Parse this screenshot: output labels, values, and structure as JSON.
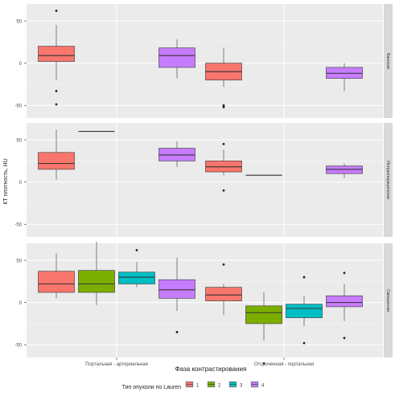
{
  "chart_data": {
    "type": "box",
    "xlabel": "Фаза контрастирования",
    "ylabel": "КТ плотность, HU",
    "categories": [
      "Портальная - артериальная",
      "Отсроченная - портальная"
    ],
    "facets": [
      "Биопсия",
      "Интраоперационная",
      "Смешанная"
    ],
    "ylim": [
      -65,
      70
    ],
    "yticks": [
      -50,
      0,
      50
    ],
    "grid": true,
    "legend": {
      "position": "bottom",
      "title": "Тип опухоли по Lauren",
      "entries": [
        {
          "label": "1",
          "color": "#F8766D"
        },
        {
          "label": "2",
          "color": "#7CAE00"
        },
        {
          "label": "3",
          "color": "#00BFC4"
        },
        {
          "label": "4",
          "color": "#C77CFF"
        }
      ]
    },
    "panels": [
      {
        "facet": "Биопсия",
        "boxes": [
          {
            "category": 0,
            "group": "1",
            "whisker_low": -20,
            "q1": 2,
            "median": 9,
            "q3": 20,
            "whisker_high": 45,
            "outliers": [
              62,
              -33
            ]
          },
          {
            "category": 0,
            "group": "4",
            "whisker_low": -18,
            "q1": -5,
            "median": 9,
            "q3": 18,
            "whisker_high": 28,
            "outliers": []
          },
          {
            "category": 1,
            "group": "1",
            "whisker_low": -28,
            "q1": -20,
            "median": -10,
            "q3": 0,
            "whisker_high": 18,
            "outliers": [
              -50,
              -52
            ]
          },
          {
            "category": 1,
            "group": "4",
            "whisker_low": -33,
            "q1": -18,
            "median": -12,
            "q3": -5,
            "whisker_high": 0,
            "outliers": []
          }
        ]
      },
      {
        "facet": "Интраоперационная",
        "boxes": [
          {
            "category": 0,
            "group": "1",
            "whisker_low": 3,
            "q1": 15,
            "median": 22,
            "q3": 35,
            "whisker_high": 62,
            "outliers": [
              92
            ]
          },
          {
            "category": 0,
            "group": "2",
            "whisker_low": 60,
            "q1": 60,
            "median": 60,
            "q3": 60,
            "whisker_high": 60,
            "outliers": []
          },
          {
            "category": 0,
            "group": "4",
            "whisker_low": 18,
            "q1": 25,
            "median": 32,
            "q3": 40,
            "whisker_high": 48,
            "outliers": []
          },
          {
            "category": 1,
            "group": "1",
            "whisker_low": 8,
            "q1": 12,
            "median": 18,
            "q3": 25,
            "whisker_high": 38,
            "outliers": [
              45,
              -10
            ]
          },
          {
            "category": 1,
            "group": "2",
            "whisker_low": 8,
            "q1": 8,
            "median": 8,
            "q3": 8,
            "whisker_high": 8,
            "outliers": []
          },
          {
            "category": 1,
            "group": "4",
            "whisker_low": 5,
            "q1": 10,
            "median": 15,
            "q3": 19,
            "whisker_high": 22,
            "outliers": []
          }
        ]
      },
      {
        "facet": "Смешанная",
        "boxes": [
          {
            "category": 0,
            "group": "1",
            "whisker_low": 5,
            "q1": 12,
            "median": 22,
            "q3": 37,
            "whisker_high": 58,
            "outliers": []
          },
          {
            "category": 0,
            "group": "2",
            "whisker_low": -3,
            "q1": 12,
            "median": 22,
            "q3": 38,
            "whisker_high": 72,
            "outliers": []
          },
          {
            "category": 0,
            "group": "3",
            "whisker_low": 18,
            "q1": 22,
            "median": 30,
            "q3": 36,
            "whisker_high": 48,
            "outliers": [
              62
            ]
          },
          {
            "category": 0,
            "group": "4",
            "whisker_low": -10,
            "q1": 5,
            "median": 15,
            "q3": 27,
            "whisker_high": 53,
            "outliers": [
              -35
            ]
          },
          {
            "category": 1,
            "group": "1",
            "whisker_low": -15,
            "q1": 2,
            "median": 9,
            "q3": 18,
            "whisker_high": 22,
            "outliers": [
              45
            ]
          },
          {
            "category": 1,
            "group": "2",
            "whisker_low": -45,
            "q1": -25,
            "median": -12,
            "q3": -4,
            "whisker_high": 12,
            "outliers": [
              -72
            ]
          },
          {
            "category": 1,
            "group": "3",
            "whisker_low": -28,
            "q1": -18,
            "median": -7,
            "q3": -2,
            "whisker_high": 8,
            "outliers": [
              -48,
              30
            ]
          },
          {
            "category": 1,
            "group": "4",
            "whisker_low": -22,
            "q1": -5,
            "median": 0,
            "q3": 8,
            "whisker_high": 22,
            "outliers": [
              35,
              -42
            ]
          }
        ]
      }
    ]
  }
}
